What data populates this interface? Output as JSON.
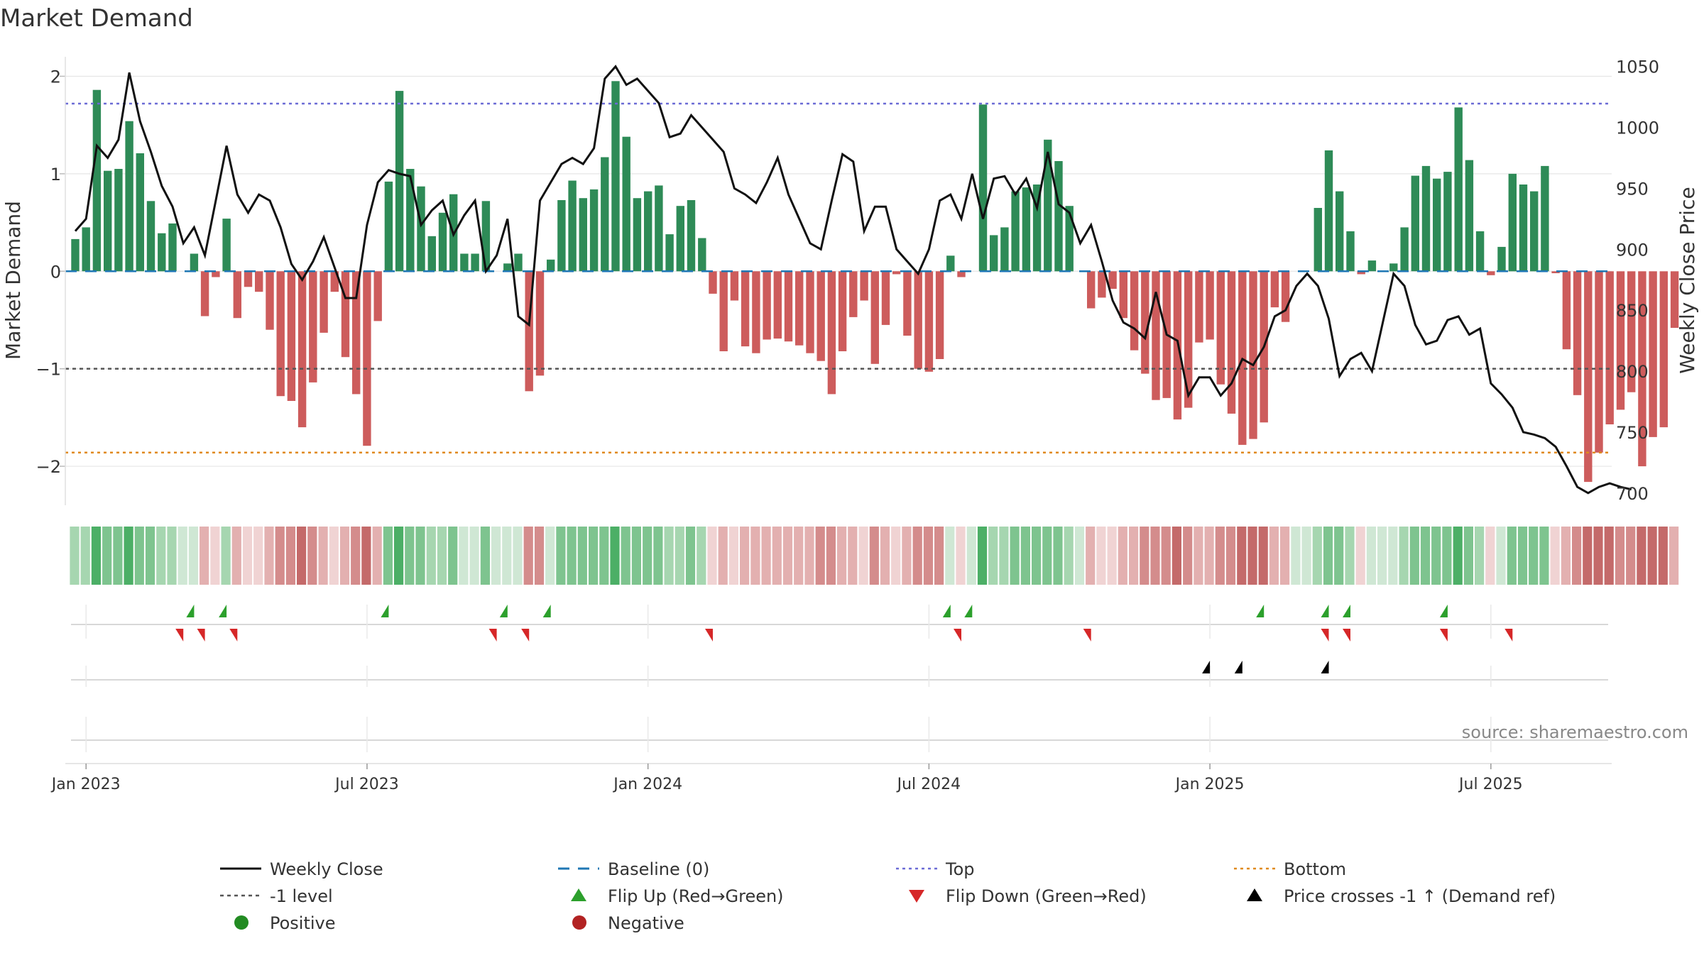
{
  "chart_data": {
    "type": "bar",
    "title": "Market Demand",
    "ylabel_left": "Market Demand",
    "ylabel_right": "Weekly Close Price",
    "source": "source: sharemaestro.com",
    "ylim_left": [
      -2.4,
      2.2
    ],
    "ylim_right": [
      690,
      1058
    ],
    "yticks_left": [
      {
        "v": 2,
        "label": "2"
      },
      {
        "v": 1,
        "label": "1"
      },
      {
        "v": 0,
        "label": "0"
      },
      {
        "v": -1,
        "label": "−1"
      },
      {
        "v": -2,
        "label": "−2"
      }
    ],
    "yticks_right": [
      1050,
      1000,
      950,
      900,
      850,
      800,
      750,
      700
    ],
    "xticks": [
      {
        "w": 1,
        "label": "Jan 2023"
      },
      {
        "w": 27,
        "label": "Jul 2023"
      },
      {
        "w": 53,
        "label": "Jan 2024"
      },
      {
        "w": 79,
        "label": "Jul 2024"
      },
      {
        "w": 105,
        "label": "Jan 2025"
      },
      {
        "w": 131,
        "label": "Jul 2025"
      }
    ],
    "levels": {
      "baseline": 0,
      "top": 1.72,
      "minus_one": -1,
      "bottom": -1.86
    },
    "demand": [
      0.33,
      0.45,
      1.86,
      1.03,
      1.05,
      1.54,
      1.21,
      0.72,
      0.39,
      0.49,
      0.0,
      0.18,
      -0.46,
      -0.06,
      0.54,
      -0.48,
      -0.16,
      -0.21,
      -0.6,
      -1.28,
      -1.33,
      -1.6,
      -1.14,
      -0.63,
      -0.21,
      -0.88,
      -1.26,
      -1.79,
      -0.51,
      0.92,
      1.85,
      1.05,
      0.87,
      0.36,
      0.6,
      0.79,
      0.18,
      0.18,
      0.72,
      0.0,
      0.08,
      0.18,
      -1.23,
      -1.07,
      0.12,
      0.73,
      0.93,
      0.75,
      0.84,
      1.17,
      1.95,
      1.38,
      0.75,
      0.82,
      0.88,
      0.38,
      0.67,
      0.73,
      0.34,
      -0.23,
      -0.82,
      -0.3,
      -0.77,
      -0.84,
      -0.7,
      -0.69,
      -0.72,
      -0.76,
      -0.84,
      -0.92,
      -1.26,
      -0.82,
      -0.47,
      -0.3,
      -0.95,
      -0.55,
      -0.03,
      -0.66,
      -1.0,
      -1.03,
      -0.9,
      0.16,
      -0.06,
      0.0,
      1.71,
      0.37,
      0.45,
      0.82,
      0.86,
      0.89,
      1.35,
      1.13,
      0.67,
      0.0,
      -0.38,
      -0.27,
      -0.18,
      -0.48,
      -0.81,
      -1.05,
      -1.32,
      -1.3,
      -1.52,
      -1.4,
      -0.73,
      -0.7,
      -1.16,
      -1.46,
      -1.78,
      -1.72,
      -1.55,
      -0.37,
      -0.52,
      0.0,
      0.0,
      0.65,
      1.24,
      0.82,
      0.41,
      -0.03,
      0.11,
      0.0,
      0.08,
      0.45,
      0.98,
      1.08,
      0.95,
      1.02,
      1.68,
      1.14,
      0.41,
      -0.04,
      0.25,
      1.0,
      0.89,
      0.82,
      1.08,
      -0.02,
      -0.8,
      -1.27,
      -2.16,
      -1.86,
      -1.57,
      -1.42,
      -1.24,
      -2.0,
      -1.7,
      -1.6,
      -0.58
    ],
    "price": [
      915,
      925,
      985,
      975,
      990,
      1045,
      1005,
      980,
      952,
      935,
      905,
      918,
      895,
      940,
      985,
      945,
      930,
      945,
      940,
      918,
      888,
      875,
      890,
      910,
      885,
      860,
      860,
      920,
      955,
      965,
      962,
      960,
      920,
      932,
      940,
      912,
      928,
      940,
      882,
      895,
      925,
      845,
      838,
      940,
      955,
      970,
      975,
      970,
      983,
      1040,
      1050,
      1035,
      1040,
      1030,
      1020,
      992,
      995,
      1010,
      1000,
      990,
      980,
      950,
      945,
      938,
      955,
      975,
      945,
      925,
      905,
      900,
      940,
      978,
      972,
      915,
      935,
      935,
      900,
      890,
      880,
      900,
      940,
      945,
      925,
      962,
      925,
      958,
      960,
      945,
      958,
      934,
      980,
      937,
      930,
      905,
      920,
      890,
      858,
      840,
      835,
      827,
      865,
      830,
      825,
      780,
      795,
      795,
      780,
      790,
      810,
      805,
      820,
      845,
      850,
      870,
      880,
      870,
      843,
      796,
      810,
      815,
      800,
      840,
      880,
      870,
      838,
      822,
      825,
      842,
      845,
      830,
      835,
      790,
      781,
      770,
      750,
      748,
      745,
      738,
      722,
      705,
      700,
      705,
      708,
      705,
      703
    ]
  },
  "strip": {
    "count": 146,
    "colors": [
      "#4caf66",
      "#7ec48f",
      "#a6d6b0",
      "#cfe7d4",
      "#f0d3d3",
      "#e3b0b0",
      "#d48c8c",
      "#c46a6a"
    ]
  },
  "markers": {
    "flip_up": [
      11,
      14,
      29,
      40,
      44,
      81,
      83,
      110,
      116,
      118,
      127
    ],
    "flip_down": [
      10,
      12,
      15,
      39,
      42,
      59,
      82,
      94,
      116,
      118,
      127,
      133
    ],
    "price_cross": [
      105,
      108,
      116
    ]
  },
  "colors": {
    "positive_bar": "#2e8b57",
    "negative_bar": "#cd5c5c",
    "price_line": "#111111",
    "baseline": "#1f77b4",
    "top_line": "#6b6bd6",
    "bottom_line": "#e08a1e",
    "minus_one_line": "#555555",
    "flip_up": "#2ca02c",
    "flip_down": "#d62728",
    "cross": "#000000",
    "grid": "#e6e6e6"
  },
  "legend": [
    {
      "key": "close",
      "label": "Weekly Close"
    },
    {
      "key": "baseline",
      "label": "Baseline (0)"
    },
    {
      "key": "top",
      "label": "Top"
    },
    {
      "key": "bottom",
      "label": "Bottom"
    },
    {
      "key": "minus1",
      "label": "-1 level"
    },
    {
      "key": "flipup",
      "label": "Flip Up (Red→Green)"
    },
    {
      "key": "flipdown",
      "label": "Flip Down (Green→Red)"
    },
    {
      "key": "cross",
      "label": "Price crosses -1 ↑ (Demand ref)"
    },
    {
      "key": "positive",
      "label": "Positive"
    },
    {
      "key": "negative",
      "label": "Negative"
    }
  ]
}
